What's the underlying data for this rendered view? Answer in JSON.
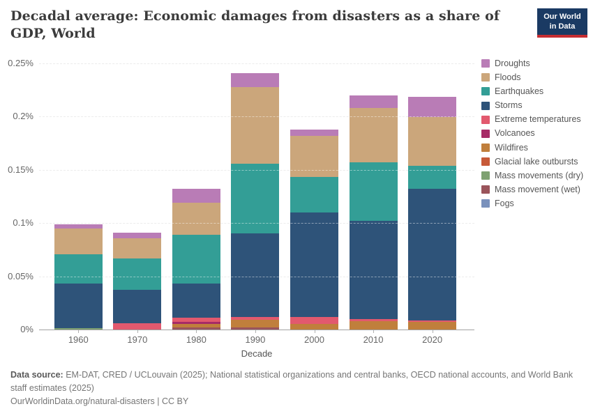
{
  "header": {
    "title": "Decadal average: Economic damages from disasters as a share of GDP, World",
    "logo": {
      "line1": "Our World",
      "line2": "in Data"
    }
  },
  "chart_data": {
    "type": "bar",
    "stacked": true,
    "title": "Decadal average: Economic damages from disasters as a share of GDP, World",
    "xlabel": "Decade",
    "ylabel": "",
    "unit": "% of GDP",
    "ylim": [
      0,
      0.25
    ],
    "grid": "dashed horizontal",
    "legend_position": "right",
    "categories": [
      "1960",
      "1970",
      "1980",
      "1990",
      "2000",
      "2010",
      "2020"
    ],
    "y_ticks": [
      {
        "label": "0%",
        "value": 0
      },
      {
        "label": "0.05%",
        "value": 0.05
      },
      {
        "label": "0.1%",
        "value": 0.1
      },
      {
        "label": "0.15%",
        "value": 0.15
      },
      {
        "label": "0.2%",
        "value": 0.2
      },
      {
        "label": "0.25%",
        "value": 0.25
      }
    ],
    "series": [
      {
        "name": "Droughts",
        "color": "#b97cb6",
        "values": [
          0.0035,
          0.005,
          0.013,
          0.013,
          0.006,
          0.012,
          0.019
        ]
      },
      {
        "name": "Floods",
        "color": "#cba67b",
        "values": [
          0.024,
          0.019,
          0.03,
          0.072,
          0.039,
          0.051,
          0.046
        ]
      },
      {
        "name": "Earthquakes",
        "color": "#339e96",
        "values": [
          0.028,
          0.03,
          0.046,
          0.066,
          0.033,
          0.055,
          0.021
        ]
      },
      {
        "name": "Storms",
        "color": "#2e5379",
        "values": [
          0.042,
          0.031,
          0.032,
          0.078,
          0.098,
          0.0925,
          0.124
        ]
      },
      {
        "name": "Extreme temperatures",
        "color": "#e2596e",
        "values": [
          0,
          0.006,
          0.004,
          0.003,
          0.007,
          0.0015,
          0.0015
        ]
      },
      {
        "name": "Volcanoes",
        "color": "#a62b67",
        "values": [
          0,
          0,
          0.002,
          0,
          0,
          0,
          0
        ]
      },
      {
        "name": "Wildfires",
        "color": "#c07f3c",
        "values": [
          0,
          0,
          0.003,
          0.007,
          0.005,
          0.008,
          0.007
        ]
      },
      {
        "name": "Glacial lake outbursts",
        "color": "#c75a38",
        "values": [
          0,
          0,
          0,
          0,
          0,
          0,
          0
        ]
      },
      {
        "name": "Mass movements (dry)",
        "color": "#7ea171",
        "values": [
          0.001,
          0,
          0,
          0,
          0,
          0,
          0
        ]
      },
      {
        "name": "Mass movement (wet)",
        "color": "#9a545b",
        "values": [
          0,
          0,
          0.002,
          0.002,
          0,
          0,
          0
        ]
      },
      {
        "name": "Fogs",
        "color": "#7a91bc",
        "values": [
          0,
          0,
          0,
          0,
          0,
          0,
          0
        ]
      }
    ],
    "stack_order_bottom_to_top": [
      "Fogs",
      "Mass movement (wet)",
      "Mass movements (dry)",
      "Glacial lake outbursts",
      "Wildfires",
      "Volcanoes",
      "Extreme temperatures",
      "Storms",
      "Earthquakes",
      "Floods",
      "Droughts"
    ]
  },
  "footer": {
    "source_label": "Data source:",
    "source_text": " EM-DAT, CRED / UCLouvain (2025); National statistical organizations and central banks, OECD national accounts, and World Bank staff estimates (2025)",
    "citation_link": "OurWorldinData.org/natural-disasters",
    "separator": " | ",
    "license": "CC BY"
  }
}
